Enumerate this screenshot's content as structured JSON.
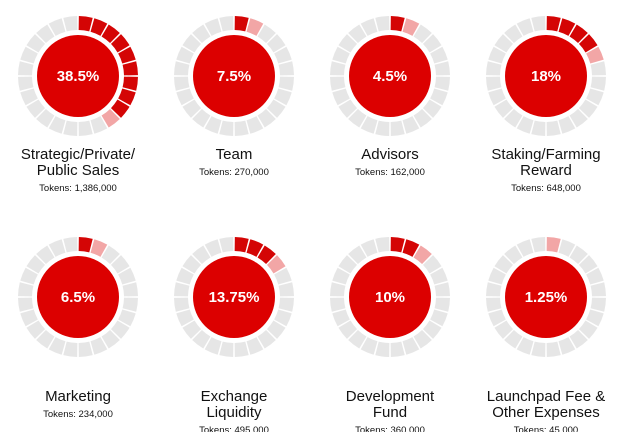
{
  "colors": {
    "center": "#dc0000",
    "segment_active": "#d40505",
    "segment_partial": "#f2a6a6",
    "segment_inactive": "#e6e6e6"
  },
  "tokens_prefix": "Tokens: ",
  "chart_data": {
    "type": "pie",
    "segments_per_ring": 24,
    "items": [
      {
        "label": "38.5%",
        "value": 38.5,
        "category": "Strategic/Private/\nPublic Sales",
        "tokens": "1,386,000"
      },
      {
        "label": "7.5%",
        "value": 7.5,
        "category": "Team",
        "tokens": "270,000"
      },
      {
        "label": "4.5%",
        "value": 4.5,
        "category": "Advisors",
        "tokens": "162,000"
      },
      {
        "label": "18%",
        "value": 18,
        "category": "Staking/Farming\nReward",
        "tokens": "648,000"
      },
      {
        "label": "6.5%",
        "value": 6.5,
        "category": "Marketing",
        "tokens": "234,000"
      },
      {
        "label": "13.75%",
        "value": 13.75,
        "category": "Exchange\nLiquidity",
        "tokens": "495,000"
      },
      {
        "label": "10%",
        "value": 10,
        "category": "Development\nFund",
        "tokens": "360,000"
      },
      {
        "label": "1.25%",
        "value": 1.25,
        "category": "Launchpad Fee &\nOther Expenses",
        "tokens": "45,000"
      }
    ]
  }
}
